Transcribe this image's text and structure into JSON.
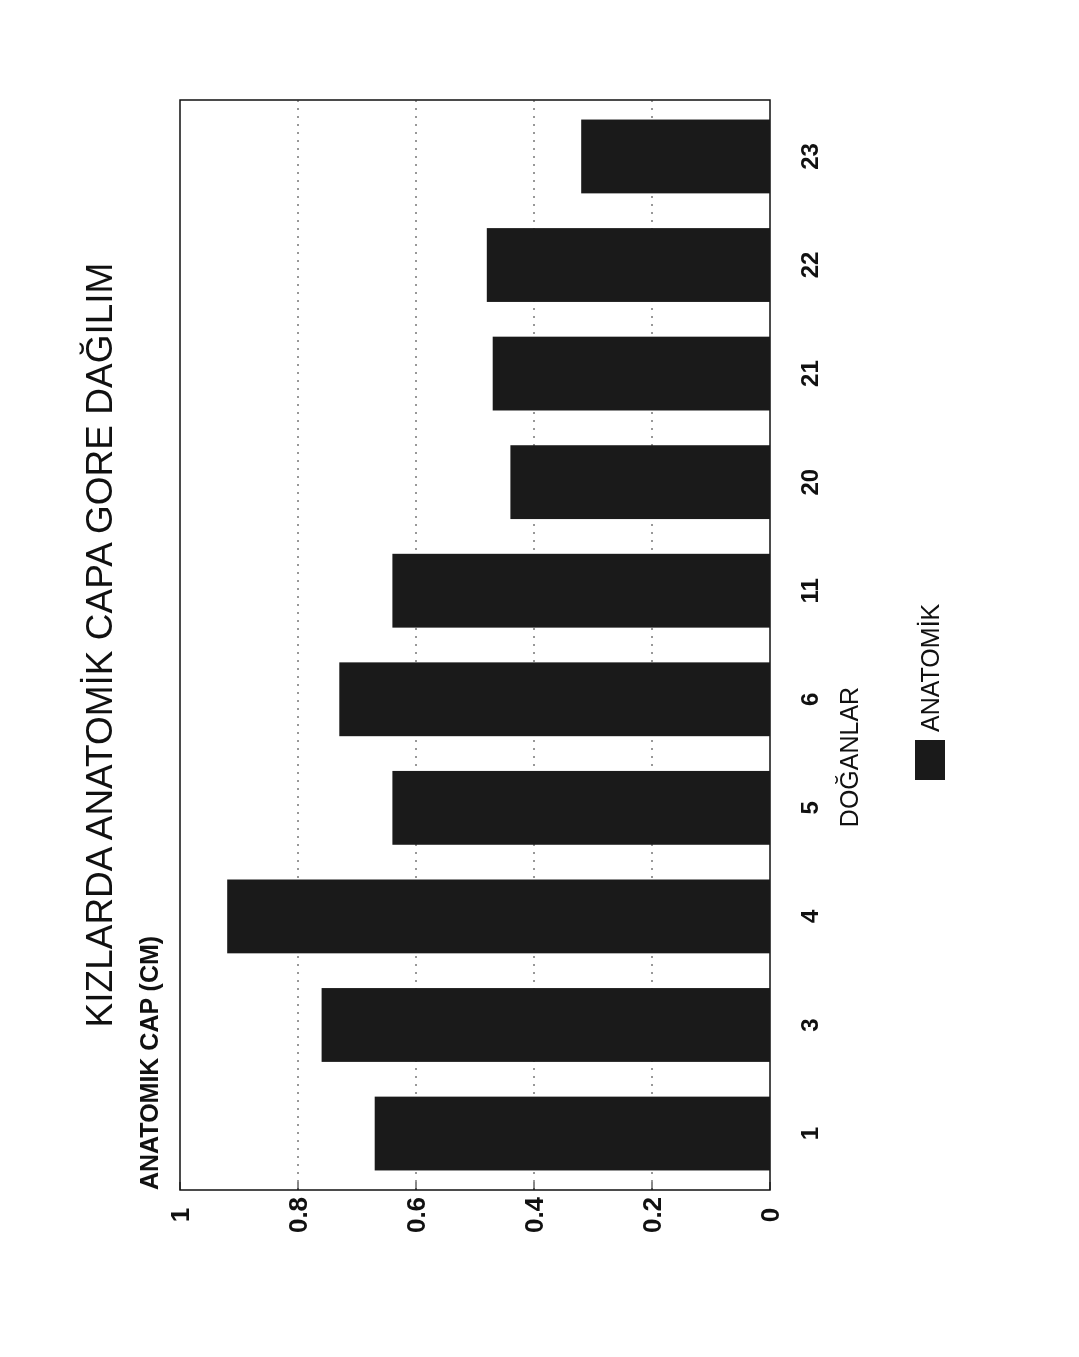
{
  "chart_data": {
    "type": "bar",
    "orientation": "horizontal",
    "title": "KIZLARDA ANATOMİK CAPA GORE DAĞILIM",
    "annotations": [
      "ANATOMIK CAP (CM)"
    ],
    "ylabel": "DOĞANLAR",
    "categories": [
      "23",
      "22",
      "21",
      "20",
      "11",
      "6",
      "5",
      "4",
      "3",
      "1"
    ],
    "series": [
      {
        "name": "ANATOMİK",
        "color": "#1a1a1a",
        "values": [
          0.32,
          0.48,
          0.47,
          0.44,
          0.64,
          0.73,
          0.64,
          0.92,
          0.76,
          0.67
        ]
      }
    ],
    "xlim": [
      1,
      0
    ],
    "xticks": [
      0,
      0.2,
      0.4,
      0.6,
      0.8,
      1
    ],
    "grid": "x",
    "legend": "bottom"
  }
}
